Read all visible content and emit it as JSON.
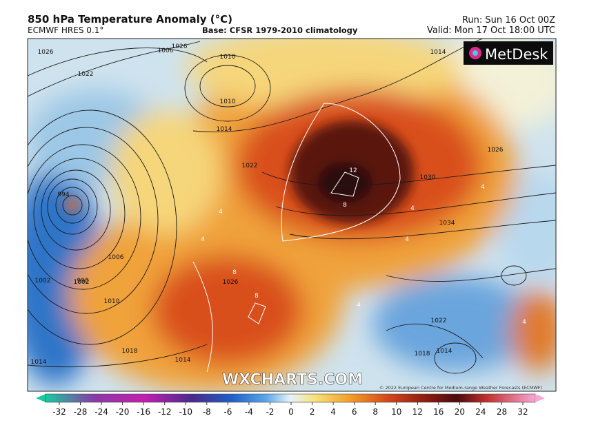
{
  "header": {
    "title": "850 hPa Temperature Anomaly (°C)",
    "model": "ECMWF HRES 0.1°",
    "base": "Base: CFSR 1979-2010 climatology",
    "run": "Run: Sun 16 Oct 00Z",
    "valid": "Valid: Mon 17 Oct 18:00 UTC"
  },
  "map": {
    "logo": "MetDesk",
    "watermark": "WXCHARTS.COM",
    "copyright": "© 2022 European Centre for Medium-range Weather Forecasts (ECMWF)",
    "isobar_labels": [
      "1026",
      "1022",
      "1018",
      "1014",
      "1010",
      "1006",
      "1002",
      "998",
      "994",
      "1010",
      "1014",
      "1014",
      "1022",
      "1026",
      "1030",
      "1034",
      "1026",
      "1022",
      "1018",
      "1014",
      "1010",
      "1006",
      "1002",
      "1014",
      "1026"
    ],
    "anomaly_labels": [
      "12",
      "8",
      "8",
      "4",
      "4",
      "8",
      "4",
      "4",
      "4",
      "4",
      "4"
    ]
  },
  "colorbar": {
    "ticks": [
      -32,
      -28,
      -24,
      -20,
      -16,
      -12,
      -10,
      -8,
      -6,
      -4,
      -2,
      0,
      2,
      4,
      6,
      8,
      10,
      12,
      16,
      20,
      24,
      28,
      32
    ]
  }
}
